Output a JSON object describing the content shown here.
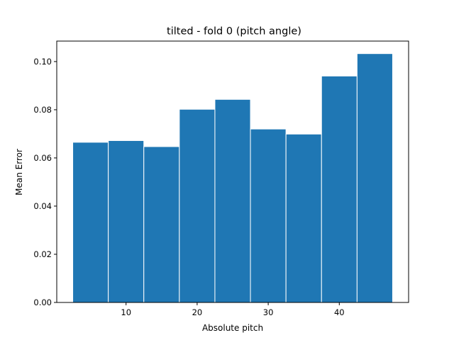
{
  "chart_data": {
    "type": "bar",
    "title": "tilted - fold 0 (pitch angle)",
    "xlabel": "Absolute pitch",
    "ylabel": "Mean Error",
    "bar_color": "#1f77b4",
    "bin_edges": [
      2.5,
      7.5,
      12.5,
      17.5,
      22.5,
      27.5,
      32.5,
      37.5,
      42.5,
      47.5
    ],
    "values": [
      0.0665,
      0.0672,
      0.0647,
      0.0802,
      0.0843,
      0.072,
      0.0699,
      0.094,
      0.1033
    ],
    "xlim": [
      0.25,
      49.75
    ],
    "ylim": [
      0,
      0.1085
    ],
    "xticks": [
      10,
      20,
      30,
      40
    ],
    "xtick_labels": [
      "10",
      "20",
      "30",
      "40"
    ],
    "yticks": [
      0,
      0.02,
      0.04,
      0.06,
      0.08,
      0.1
    ],
    "ytick_labels": [
      "0.00",
      "0.02",
      "0.04",
      "0.06",
      "0.08",
      "0.10"
    ],
    "grid": false,
    "legend": false
  }
}
